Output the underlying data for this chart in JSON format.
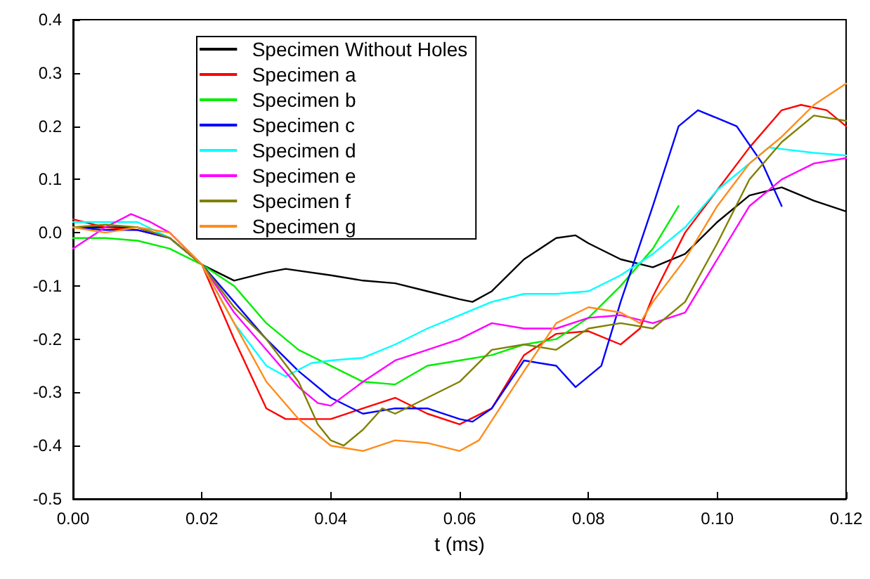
{
  "chart_data": {
    "type": "line",
    "xlabel": "t (ms)",
    "xlim": [
      0,
      0.12
    ],
    "ylim": [
      -0.5,
      0.4
    ],
    "xticks": [
      {
        "value": 0,
        "label": "0.00"
      },
      {
        "value": 0.02,
        "label": "0.02"
      },
      {
        "value": 0.04,
        "label": "0.04"
      },
      {
        "value": 0.06,
        "label": "0.06"
      },
      {
        "value": 0.08,
        "label": "0.08"
      },
      {
        "value": 0.1,
        "label": "0.10"
      },
      {
        "value": 0.12,
        "label": "0.12"
      }
    ],
    "yticks": [
      {
        "value": -0.5,
        "label": "-0.5"
      },
      {
        "value": -0.4,
        "label": "-0.4"
      },
      {
        "value": -0.3,
        "label": "-0.3"
      },
      {
        "value": -0.2,
        "label": "-0.2"
      },
      {
        "value": -0.1,
        "label": "-0.1"
      },
      {
        "value": 0,
        "label": "0.0"
      },
      {
        "value": 0.1,
        "label": "0.1"
      },
      {
        "value": 0.2,
        "label": "0.2"
      },
      {
        "value": 0.3,
        "label": "0.3"
      },
      {
        "value": 0.4,
        "label": "0.4"
      }
    ],
    "grid": false,
    "legend": "top left",
    "marker": "none",
    "line_style": "solid",
    "series": [
      {
        "name": "Specimen Without Holes",
        "color": "#000000",
        "x": [
          0,
          0.005,
          0.01,
          0.015,
          0.02,
          0.025,
          0.03,
          0.033,
          0.04,
          0.045,
          0.05,
          0.055,
          0.06,
          0.062,
          0.065,
          0.07,
          0.075,
          0.078,
          0.08,
          0.085,
          0.09,
          0.095,
          0.1,
          0.105,
          0.11,
          0.115,
          0.12
        ],
        "values": [
          0.01,
          0.01,
          0.01,
          -0.01,
          -0.06,
          -0.09,
          -0.075,
          -0.068,
          -0.08,
          -0.09,
          -0.095,
          -0.11,
          -0.125,
          -0.13,
          -0.11,
          -0.05,
          -0.01,
          -0.005,
          -0.02,
          -0.05,
          -0.065,
          -0.04,
          0.02,
          0.07,
          0.085,
          0.06,
          0.04
        ]
      },
      {
        "name": "Specimen a",
        "color": "#ff0000",
        "x": [
          0,
          0.005,
          0.01,
          0.015,
          0.02,
          0.025,
          0.03,
          0.033,
          0.04,
          0.045,
          0.05,
          0.055,
          0.06,
          0.065,
          0.07,
          0.075,
          0.08,
          0.085,
          0.088,
          0.09,
          0.095,
          0.1,
          0.105,
          0.11,
          0.113,
          0.117,
          0.12
        ],
        "values": [
          0.025,
          0.01,
          0.005,
          -0.01,
          -0.06,
          -0.2,
          -0.33,
          -0.35,
          -0.35,
          -0.33,
          -0.31,
          -0.34,
          -0.36,
          -0.33,
          -0.23,
          -0.19,
          -0.185,
          -0.21,
          -0.18,
          -0.12,
          0,
          0.08,
          0.16,
          0.23,
          0.24,
          0.23,
          0.2
        ]
      },
      {
        "name": "Specimen b",
        "color": "#00ee00",
        "x": [
          0,
          0.005,
          0.01,
          0.015,
          0.02,
          0.025,
          0.03,
          0.035,
          0.04,
          0.045,
          0.05,
          0.055,
          0.06,
          0.065,
          0.07,
          0.075,
          0.08,
          0.085,
          0.09,
          0.094
        ],
        "values": [
          -0.01,
          -0.01,
          -0.015,
          -0.03,
          -0.06,
          -0.1,
          -0.17,
          -0.22,
          -0.25,
          -0.28,
          -0.285,
          -0.25,
          -0.24,
          -0.23,
          -0.21,
          -0.2,
          -0.16,
          -0.1,
          -0.03,
          0.05
        ]
      },
      {
        "name": "Specimen c",
        "color": "#0000ff",
        "x": [
          0,
          0.005,
          0.01,
          0.015,
          0.02,
          0.025,
          0.03,
          0.035,
          0.04,
          0.045,
          0.05,
          0.055,
          0.06,
          0.062,
          0.065,
          0.07,
          0.075,
          0.078,
          0.082,
          0.085,
          0.09,
          0.094,
          0.097,
          0.1,
          0.103,
          0.107,
          0.11
        ],
        "values": [
          0.01,
          0.005,
          0.005,
          -0.01,
          -0.06,
          -0.13,
          -0.2,
          -0.26,
          -0.31,
          -0.34,
          -0.33,
          -0.33,
          -0.35,
          -0.355,
          -0.33,
          -0.24,
          -0.25,
          -0.29,
          -0.25,
          -0.13,
          0.05,
          0.2,
          0.23,
          0.215,
          0.2,
          0.13,
          0.05
        ]
      },
      {
        "name": "Specimen d",
        "color": "#00ffff",
        "x": [
          0,
          0.005,
          0.01,
          0.015,
          0.02,
          0.025,
          0.03,
          0.033,
          0.037,
          0.04,
          0.045,
          0.05,
          0.055,
          0.06,
          0.065,
          0.07,
          0.075,
          0.08,
          0.085,
          0.09,
          0.095,
          0.1,
          0.105,
          0.108,
          0.115,
          0.12
        ],
        "values": [
          0.02,
          0.02,
          0.02,
          -0.01,
          -0.06,
          -0.17,
          -0.25,
          -0.27,
          -0.245,
          -0.24,
          -0.235,
          -0.21,
          -0.18,
          -0.155,
          -0.13,
          -0.115,
          -0.115,
          -0.11,
          -0.08,
          -0.04,
          0.01,
          0.08,
          0.13,
          0.16,
          0.15,
          0.145
        ]
      },
      {
        "name": "Specimen e",
        "color": "#ff00ff",
        "x": [
          0,
          0.005,
          0.009,
          0.012,
          0.015,
          0.02,
          0.025,
          0.03,
          0.035,
          0.038,
          0.04,
          0.045,
          0.05,
          0.055,
          0.06,
          0.065,
          0.07,
          0.075,
          0.08,
          0.085,
          0.09,
          0.095,
          0.1,
          0.105,
          0.11,
          0.115,
          0.12
        ],
        "values": [
          -0.03,
          0.01,
          0.035,
          0.02,
          0,
          -0.06,
          -0.15,
          -0.22,
          -0.29,
          -0.32,
          -0.325,
          -0.28,
          -0.24,
          -0.22,
          -0.2,
          -0.17,
          -0.18,
          -0.18,
          -0.16,
          -0.155,
          -0.17,
          -0.15,
          -0.05,
          0.05,
          0.1,
          0.13,
          0.14
        ]
      },
      {
        "name": "Specimen f",
        "color": "#808000",
        "x": [
          0,
          0.005,
          0.01,
          0.015,
          0.02,
          0.025,
          0.03,
          0.035,
          0.038,
          0.04,
          0.042,
          0.045,
          0.048,
          0.05,
          0.055,
          0.06,
          0.065,
          0.07,
          0.075,
          0.08,
          0.085,
          0.09,
          0.095,
          0.1,
          0.105,
          0.11,
          0.115,
          0.12
        ],
        "values": [
          0.01,
          0.015,
          0.01,
          -0.01,
          -0.06,
          -0.14,
          -0.2,
          -0.28,
          -0.36,
          -0.39,
          -0.4,
          -0.37,
          -0.33,
          -0.34,
          -0.31,
          -0.28,
          -0.22,
          -0.21,
          -0.22,
          -0.18,
          -0.17,
          -0.18,
          -0.13,
          -0.02,
          0.1,
          0.17,
          0.22,
          0.21
        ]
      },
      {
        "name": "Specimen g",
        "color": "#ff8c1a",
        "x": [
          0,
          0.005,
          0.01,
          0.015,
          0.02,
          0.025,
          0.03,
          0.035,
          0.04,
          0.045,
          0.05,
          0.055,
          0.06,
          0.063,
          0.07,
          0.075,
          0.08,
          0.085,
          0.088,
          0.09,
          0.095,
          0.1,
          0.105,
          0.11,
          0.115,
          0.12
        ],
        "values": [
          0.01,
          0,
          0.01,
          0,
          -0.06,
          -0.17,
          -0.28,
          -0.35,
          -0.4,
          -0.41,
          -0.39,
          -0.395,
          -0.41,
          -0.39,
          -0.26,
          -0.17,
          -0.14,
          -0.15,
          -0.17,
          -0.13,
          -0.05,
          0.05,
          0.13,
          0.18,
          0.24,
          0.28
        ]
      }
    ]
  }
}
